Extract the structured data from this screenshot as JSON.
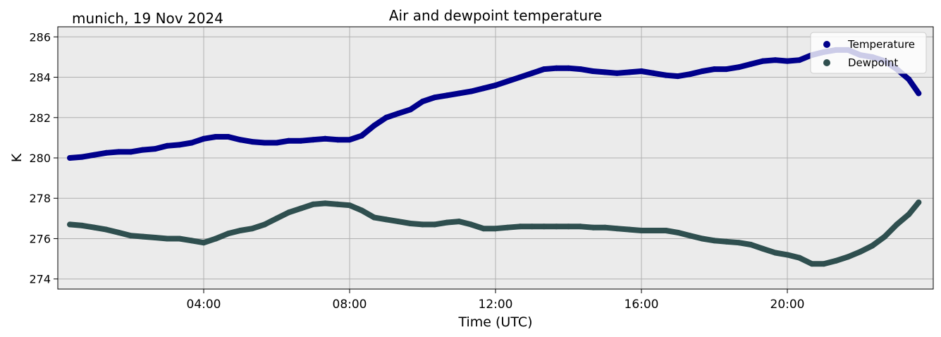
{
  "header": {
    "station_date": "munich, 19 Nov 2024"
  },
  "colors": {
    "background": "#ebebeb",
    "temperature": "#00008b",
    "dewpoint": "#2f4f4f",
    "temperature_raw": "#7aa6a6",
    "dewpoint_raw": "#1f9fe8",
    "grid": "#b0b0b0"
  },
  "chart_data": {
    "type": "line",
    "title": "Air and dewpoint temperature",
    "xlabel": "Time (UTC)",
    "ylabel": "K",
    "x_unit": "hours",
    "xlim": [
      0,
      24
    ],
    "ylim": [
      273.5,
      286.5
    ],
    "x_ticks": [
      {
        "value": 4,
        "label": "04:00"
      },
      {
        "value": 8,
        "label": "08:00"
      },
      {
        "value": 12,
        "label": "12:00"
      },
      {
        "value": 16,
        "label": "16:00"
      },
      {
        "value": 20,
        "label": "20:00"
      }
    ],
    "y_ticks": [
      {
        "value": 274,
        "label": "274"
      },
      {
        "value": 276,
        "label": "276"
      },
      {
        "value": 278,
        "label": "278"
      },
      {
        "value": 280,
        "label": "280"
      },
      {
        "value": 282,
        "label": "282"
      },
      {
        "value": 284,
        "label": "284"
      },
      {
        "value": 286,
        "label": "286"
      }
    ],
    "grid": true,
    "legend": "top-right",
    "series": [
      {
        "name": "Temperature",
        "color": "#00008b",
        "x": [
          0.33,
          0.67,
          1.0,
          1.33,
          1.67,
          2.0,
          2.33,
          2.67,
          3.0,
          3.33,
          3.67,
          4.0,
          4.33,
          4.67,
          5.0,
          5.33,
          5.67,
          6.0,
          6.33,
          6.67,
          7.0,
          7.33,
          7.67,
          8.0,
          8.33,
          8.67,
          9.0,
          9.33,
          9.67,
          10.0,
          10.33,
          10.67,
          11.0,
          11.33,
          11.67,
          12.0,
          12.33,
          12.67,
          13.0,
          13.33,
          13.67,
          14.0,
          14.33,
          14.67,
          15.0,
          15.33,
          15.67,
          16.0,
          16.33,
          16.67,
          17.0,
          17.33,
          17.67,
          18.0,
          18.33,
          18.67,
          19.0,
          19.33,
          19.67,
          20.0,
          20.33,
          20.67,
          21.0,
          21.33,
          21.67,
          22.0,
          22.33,
          22.67,
          23.0,
          23.33,
          23.6
        ],
        "y": [
          280.0,
          280.05,
          280.15,
          280.25,
          280.3,
          280.3,
          280.4,
          280.45,
          280.6,
          280.65,
          280.75,
          280.95,
          281.05,
          281.05,
          280.9,
          280.8,
          280.75,
          280.75,
          280.85,
          280.85,
          280.9,
          280.95,
          280.9,
          280.9,
          281.1,
          281.6,
          282.0,
          282.2,
          282.4,
          282.8,
          283.0,
          283.1,
          283.2,
          283.3,
          283.45,
          283.6,
          283.8,
          284.0,
          284.2,
          284.4,
          284.45,
          284.45,
          284.4,
          284.3,
          284.25,
          284.2,
          284.25,
          284.3,
          284.2,
          284.1,
          284.05,
          284.15,
          284.3,
          284.4,
          284.4,
          284.5,
          284.65,
          284.8,
          284.85,
          284.8,
          284.85,
          285.1,
          285.25,
          285.35,
          285.35,
          285.1,
          285.0,
          284.8,
          284.4,
          283.9,
          283.2
        ]
      },
      {
        "name": "Dewpoint",
        "color": "#2f4f4f",
        "x": [
          0.33,
          0.67,
          1.0,
          1.33,
          1.67,
          2.0,
          2.33,
          2.67,
          3.0,
          3.33,
          3.67,
          4.0,
          4.33,
          4.67,
          5.0,
          5.33,
          5.67,
          6.0,
          6.33,
          6.67,
          7.0,
          7.33,
          7.67,
          8.0,
          8.33,
          8.67,
          9.0,
          9.33,
          9.67,
          10.0,
          10.33,
          10.67,
          11.0,
          11.33,
          11.67,
          12.0,
          12.33,
          12.67,
          13.0,
          13.33,
          13.67,
          14.0,
          14.33,
          14.67,
          15.0,
          15.33,
          15.67,
          16.0,
          16.33,
          16.67,
          17.0,
          17.33,
          17.67,
          18.0,
          18.33,
          18.67,
          19.0,
          19.33,
          19.67,
          20.0,
          20.33,
          20.67,
          21.0,
          21.33,
          21.67,
          22.0,
          22.33,
          22.67,
          23.0,
          23.33,
          23.6
        ],
        "y": [
          276.7,
          276.65,
          276.55,
          276.45,
          276.3,
          276.15,
          276.1,
          276.05,
          276.0,
          276.0,
          275.9,
          275.8,
          276.0,
          276.25,
          276.4,
          276.5,
          276.7,
          277.0,
          277.3,
          277.5,
          277.7,
          277.75,
          277.7,
          277.65,
          277.4,
          277.05,
          276.95,
          276.85,
          276.75,
          276.7,
          276.7,
          276.8,
          276.85,
          276.7,
          276.5,
          276.5,
          276.55,
          276.6,
          276.6,
          276.6,
          276.6,
          276.6,
          276.6,
          276.55,
          276.55,
          276.5,
          276.45,
          276.4,
          276.4,
          276.4,
          276.3,
          276.15,
          276.0,
          275.9,
          275.85,
          275.8,
          275.7,
          275.5,
          275.3,
          275.2,
          275.05,
          274.75,
          274.75,
          274.9,
          275.1,
          275.35,
          275.65,
          276.1,
          276.7,
          277.2,
          277.8
        ]
      }
    ]
  }
}
